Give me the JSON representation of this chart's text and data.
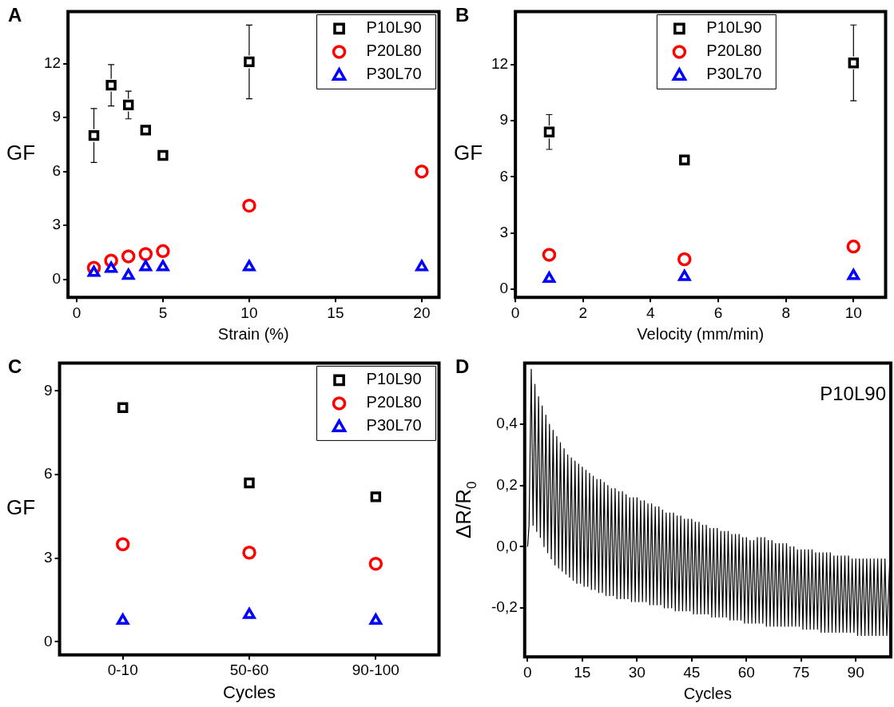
{
  "chart_data": [
    {
      "type": "scatter",
      "title": "A",
      "xlabel": "Strain (%)",
      "ylabel": "GF",
      "xlim": [
        -0.5,
        21
      ],
      "xticks": [
        0,
        5,
        10,
        15,
        20
      ],
      "ylim": [
        -1,
        14.9
      ],
      "yticks": [
        0,
        3,
        6,
        9,
        12
      ],
      "grid": false,
      "legend": "top right",
      "series": [
        {
          "name": "P10L90",
          "color": "#000000",
          "marker": "square",
          "x": [
            1,
            2,
            3,
            4,
            5,
            10
          ],
          "values": [
            8.0,
            10.8,
            9.7,
            8.3,
            6.9,
            12.1
          ],
          "errors": [
            1.5,
            1.15,
            0.77,
            null,
            null,
            2.05
          ]
        },
        {
          "name": "P20L80",
          "color": "#ff0000",
          "marker": "circle",
          "x": [
            1,
            2,
            3,
            4,
            5,
            10,
            20
          ],
          "values": [
            0.64,
            1.04,
            1.28,
            1.41,
            1.57,
            4.1,
            6.0
          ]
        },
        {
          "name": "P30L70",
          "color": "#0000ff",
          "marker": "triangle",
          "x": [
            1,
            2,
            3,
            4,
            5,
            10,
            20
          ],
          "values": [
            0.37,
            0.6,
            0.21,
            0.69,
            0.69,
            0.69,
            0.69
          ]
        }
      ]
    },
    {
      "type": "scatter",
      "title": "B",
      "xlabel": "Velocity (mm/min)",
      "ylabel": "GF",
      "xlim": [
        0,
        10.95
      ],
      "xticks": [
        0,
        2,
        4,
        6,
        8,
        10
      ],
      "ylim": [
        -0.45,
        14.85
      ],
      "yticks": [
        0,
        3,
        6,
        9,
        12
      ],
      "grid": false,
      "legend": "top",
      "series": [
        {
          "name": "P10L90",
          "color": "#000000",
          "marker": "square",
          "x": [
            1,
            5,
            10
          ],
          "values": [
            8.4,
            6.9,
            12.1
          ],
          "errors": [
            0.93,
            null,
            2.03
          ]
        },
        {
          "name": "P20L80",
          "color": "#ff0000",
          "marker": "circle",
          "x": [
            1,
            5,
            10
          ],
          "values": [
            1.83,
            1.59,
            2.27
          ]
        },
        {
          "name": "P30L70",
          "color": "#0000ff",
          "marker": "triangle",
          "x": [
            1,
            5,
            10
          ],
          "values": [
            0.55,
            0.65,
            0.7
          ]
        }
      ]
    },
    {
      "type": "scatter",
      "title": "C",
      "xlabel": "Cycles",
      "ylabel": "GF",
      "categories": [
        "0-10",
        "50-60",
        "90-100"
      ],
      "ylim": [
        -0.47,
        10
      ],
      "yticks": [
        0,
        3,
        6,
        9
      ],
      "grid": false,
      "legend": "top right",
      "series": [
        {
          "name": "P10L90",
          "color": "#000000",
          "marker": "square",
          "values": [
            8.4,
            5.7,
            5.2
          ]
        },
        {
          "name": "P20L80",
          "color": "#ff0000",
          "marker": "circle",
          "values": [
            3.5,
            3.2,
            2.8
          ]
        },
        {
          "name": "P30L70",
          "color": "#0000ff",
          "marker": "triangle",
          "values": [
            0.76,
            0.97,
            0.76
          ]
        }
      ]
    },
    {
      "type": "line",
      "title": "D",
      "xlabel": "Cycles",
      "ylabel": "ΔR/R$_{0}$",
      "annotations": [
        "P10L90"
      ],
      "xlim": [
        -0.8,
        99.6
      ],
      "xticks": [
        0,
        15,
        30,
        45,
        60,
        75,
        90
      ],
      "ylim": [
        -0.36,
        0.6
      ],
      "yticks": [
        {
          "value": -0.2,
          "label": "-0,2"
        },
        {
          "value": 0,
          "label": "0,0"
        },
        {
          "value": 0.2,
          "label": "0,2"
        },
        {
          "value": 0.4,
          "label": "0,4"
        }
      ],
      "grid": false,
      "marker": "none",
      "series": [
        {
          "color": "#000000",
          "x": [
            0,
            0.4,
            1,
            1.5,
            2,
            2.5,
            3,
            3.5,
            4,
            4.5,
            5,
            5.5,
            6,
            6.5,
            7,
            7.5,
            8,
            8.5,
            9,
            9.5,
            10,
            10.5,
            11,
            11.5,
            12,
            12.5,
            13,
            13.5,
            14,
            14.5,
            15,
            15.5,
            16,
            16.5,
            17,
            17.5,
            18,
            18.5,
            19,
            19.5,
            20,
            20.5,
            21,
            21.5,
            22,
            22.5,
            23,
            23.5,
            24,
            24.5,
            25,
            25.5,
            26,
            26.5,
            27,
            27.5,
            28,
            28.5,
            29,
            29.5,
            30,
            30.5,
            31,
            31.5,
            32,
            32.5,
            33,
            33.5,
            34,
            34.5,
            35,
            35.5,
            36,
            36.5,
            37,
            37.5,
            38,
            38.5,
            39,
            39.5,
            40,
            40.5,
            41,
            41.5,
            42,
            42.5,
            43,
            43.5,
            44,
            44.5,
            45,
            45.5,
            46,
            46.5,
            47,
            47.5,
            48,
            48.5,
            49,
            49.5,
            50,
            50.5,
            51,
            51.5,
            52,
            52.5,
            53,
            53.5,
            54,
            54.5,
            55,
            55.5,
            56,
            56.5,
            57,
            57.5,
            58,
            58.5,
            59,
            59.5,
            60,
            60.5,
            61,
            61.5,
            62,
            62.5,
            63,
            63.5,
            64,
            64.5,
            65,
            65.5,
            66,
            66.5,
            67,
            67.5,
            68,
            68.5,
            69,
            69.5,
            70,
            70.5,
            71,
            71.5,
            72,
            72.5,
            73,
            73.5,
            74,
            74.5,
            75,
            75.5,
            76,
            76.5,
            77,
            77.5,
            78,
            78.5,
            79,
            79.5,
            80,
            80.5,
            81,
            81.5,
            82,
            82.5,
            83,
            83.5,
            84,
            84.5,
            85,
            85.5,
            86,
            86.5,
            87,
            87.5,
            88,
            88.5,
            89,
            89.5,
            90,
            90.5,
            91,
            91.5,
            92,
            92.5,
            93,
            93.5,
            94,
            94.5,
            95,
            95.5,
            96,
            96.5,
            97,
            97.5,
            98,
            98.5,
            99.4
          ],
          "values": [
            0,
            0.07,
            0.58,
            0.07,
            0.53,
            0.05,
            0.49,
            0.03,
            0.46,
            0,
            0.43,
            -0.02,
            0.4,
            -0.04,
            0.38,
            -0.06,
            0.36,
            -0.07,
            0.34,
            -0.08,
            0.32,
            -0.09,
            0.3,
            -0.1,
            0.29,
            -0.11,
            0.28,
            -0.12,
            0.27,
            -0.12,
            0.26,
            -0.13,
            0.25,
            -0.13,
            0.24,
            -0.14,
            0.23,
            -0.14,
            0.22,
            -0.15,
            0.22,
            -0.15,
            0.21,
            -0.16,
            0.2,
            -0.16,
            0.19,
            -0.16,
            0.19,
            -0.17,
            0.18,
            -0.17,
            0.18,
            -0.17,
            0.17,
            -0.17,
            0.16,
            -0.18,
            0.16,
            -0.18,
            0.16,
            -0.18,
            0.15,
            -0.18,
            0.15,
            -0.18,
            0.14,
            -0.19,
            0.14,
            -0.19,
            0.13,
            -0.19,
            0.13,
            -0.19,
            0.12,
            -0.2,
            0.11,
            -0.2,
            0.11,
            -0.2,
            0.11,
            -0.21,
            0.1,
            -0.21,
            0.1,
            -0.21,
            0.09,
            -0.21,
            0.09,
            -0.21,
            0.09,
            -0.22,
            0.08,
            -0.22,
            0.08,
            -0.22,
            0.07,
            -0.22,
            0.07,
            -0.22,
            0.06,
            -0.23,
            0.06,
            -0.23,
            0.06,
            -0.23,
            0.05,
            -0.23,
            0.05,
            -0.23,
            0.05,
            -0.24,
            0.04,
            -0.24,
            0.04,
            -0.24,
            0.04,
            -0.24,
            0.03,
            -0.25,
            0.03,
            -0.25,
            0.02,
            -0.25,
            0.02,
            -0.25,
            0.03,
            -0.25,
            0.03,
            -0.25,
            0.03,
            -0.26,
            0.02,
            -0.26,
            0.02,
            -0.26,
            0.01,
            -0.26,
            0.01,
            -0.26,
            0.01,
            -0.26,
            0.01,
            -0.26,
            0,
            -0.26,
            0,
            -0.26,
            -0.01,
            -0.26,
            -0.01,
            -0.27,
            -0.01,
            -0.27,
            -0.01,
            -0.27,
            -0.01,
            -0.27,
            -0.02,
            -0.27,
            -0.02,
            -0.28,
            -0.02,
            -0.28,
            -0.02,
            -0.28,
            -0.02,
            -0.28,
            -0.03,
            -0.28,
            -0.03,
            -0.28,
            -0.03,
            -0.28,
            -0.03,
            -0.28,
            -0.03,
            -0.28,
            -0.04,
            -0.28,
            -0.04,
            -0.29,
            -0.04,
            -0.29,
            -0.04,
            -0.29,
            -0.04,
            -0.29,
            -0.04,
            -0.29,
            -0.04,
            -0.29,
            -0.04,
            -0.29,
            -0.04,
            -0.29,
            -0.04,
            -0.29,
            -0.02
          ]
        }
      ]
    }
  ]
}
